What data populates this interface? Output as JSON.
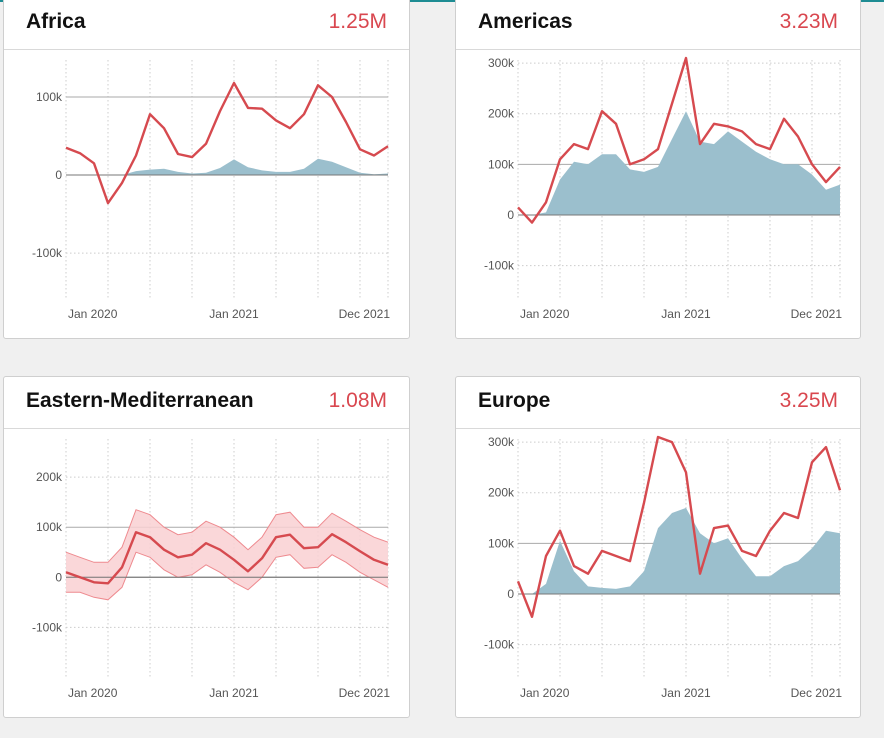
{
  "colors": {
    "line": "#d64a4f",
    "area": "#9bbfcd",
    "band_fill": "#f9d0d2",
    "band_stroke": "#ee8a8f",
    "grid": "#cccccc",
    "zero": "#777777"
  },
  "charts": [
    {
      "title": "Africa",
      "total": "1.25M",
      "chart_data": {
        "type": "line",
        "x_ticks": [
          "Jan 2020",
          "Jan 2021",
          "Dec 2021"
        ],
        "y_ticks": [
          "100k",
          "0",
          "-100k"
        ],
        "ylim": [
          -155000,
          150000
        ],
        "series": [
          {
            "style": "line",
            "values": [
              35000,
              28000,
              15000,
              -36000,
              -10000,
              25000,
              78000,
              60000,
              27000,
              23000,
              40000,
              82000,
              118000,
              86000,
              85000,
              70000,
              60000,
              78000,
              115000,
              100000,
              68000,
              33000,
              25000,
              37000
            ]
          },
          {
            "style": "area",
            "values": [
              0,
              0,
              0,
              0,
              0,
              5000,
              7000,
              8000,
              4000,
              2000,
              3000,
              9000,
              20000,
              10000,
              6000,
              4000,
              4000,
              8000,
              21000,
              17000,
              10000,
              3000,
              1000,
              2000
            ]
          }
        ]
      }
    },
    {
      "title": "Americas",
      "total": "3.23M",
      "chart_data": {
        "type": "line",
        "x_ticks": [
          "Jan 2020",
          "Jan 2021",
          "Dec 2021"
        ],
        "y_ticks": [
          "300k",
          "200k",
          "100k",
          "0",
          "-100k"
        ],
        "ylim": [
          -160000,
          310000
        ],
        "series": [
          {
            "style": "line",
            "values": [
              15000,
              -15000,
              25000,
              110000,
              140000,
              130000,
              205000,
              180000,
              100000,
              110000,
              130000,
              220000,
              310000,
              140000,
              180000,
              175000,
              165000,
              140000,
              130000,
              190000,
              155000,
              100000,
              65000,
              95000
            ]
          },
          {
            "style": "area",
            "values": [
              0,
              0,
              5000,
              70000,
              105000,
              100000,
              120000,
              120000,
              90000,
              85000,
              95000,
              150000,
              205000,
              145000,
              140000,
              165000,
              145000,
              125000,
              110000,
              100000,
              100000,
              80000,
              50000,
              60000
            ]
          }
        ]
      }
    },
    {
      "title": "Eastern-Mediterranean",
      "total": "1.08M",
      "chart_data": {
        "type": "line",
        "x_ticks": [
          "Jan 2020",
          "Jan 2021",
          "Dec 2021"
        ],
        "y_ticks": [
          "200k",
          "100k",
          "0",
          "-100k"
        ],
        "ylim": [
          -195000,
          280000
        ],
        "series": [
          {
            "style": "line",
            "values": [
              10000,
              0,
              -10000,
              -12000,
              20000,
              90000,
              80000,
              55000,
              40000,
              45000,
              68000,
              55000,
              35000,
              12000,
              38000,
              80000,
              85000,
              58000,
              60000,
              86000,
              70000,
              52000,
              35000,
              25000
            ]
          },
          {
            "style": "band",
            "upper": [
              50000,
              40000,
              30000,
              30000,
              60000,
              135000,
              125000,
              100000,
              85000,
              90000,
              112000,
              100000,
              80000,
              55000,
              80000,
              125000,
              130000,
              100000,
              100000,
              128000,
              112000,
              95000,
              80000,
              70000
            ],
            "lower": [
              -30000,
              -30000,
              -40000,
              -45000,
              -20000,
              50000,
              40000,
              15000,
              0,
              5000,
              25000,
              10000,
              -10000,
              -25000,
              0,
              40000,
              45000,
              18000,
              20000,
              45000,
              30000,
              10000,
              -5000,
              -20000
            ]
          }
        ]
      }
    },
    {
      "title": "Europe",
      "total": "3.25M",
      "chart_data": {
        "type": "line",
        "x_ticks": [
          "Jan 2020",
          "Jan 2021",
          "Dec 2021"
        ],
        "y_ticks": [
          "300k",
          "200k",
          "100k",
          "0",
          "-100k"
        ],
        "ylim": [
          -160000,
          310000
        ],
        "series": [
          {
            "style": "line",
            "values": [
              25000,
              -45000,
              75000,
              125000,
              55000,
              40000,
              85000,
              75000,
              65000,
              180000,
              310000,
              300000,
              240000,
              40000,
              130000,
              135000,
              85000,
              75000,
              125000,
              160000,
              150000,
              260000,
              290000,
              205000
            ]
          },
          {
            "style": "area",
            "values": [
              0,
              0,
              20000,
              105000,
              45000,
              15000,
              12000,
              10000,
              15000,
              45000,
              130000,
              160000,
              170000,
              120000,
              100000,
              110000,
              70000,
              35000,
              35000,
              55000,
              65000,
              90000,
              125000,
              120000
            ]
          }
        ]
      }
    }
  ]
}
